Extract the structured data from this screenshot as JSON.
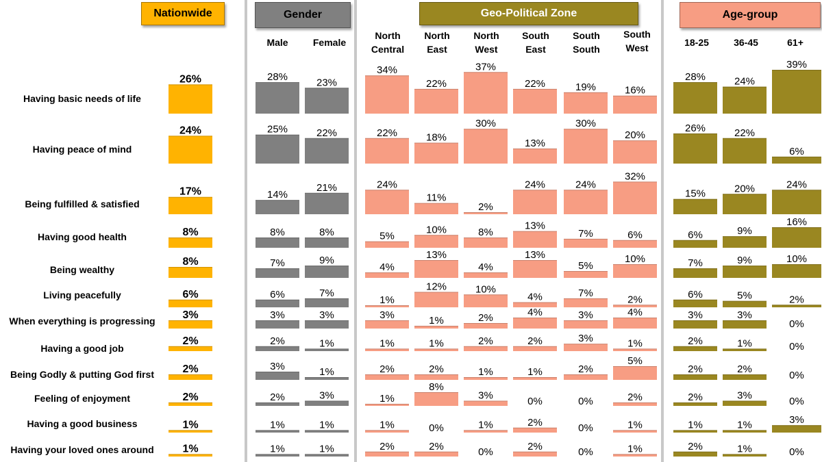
{
  "headers": {
    "nationwide": "Nationwide",
    "gender": "Gender",
    "zone": "Geo-Political Zone",
    "age": "Age-group"
  },
  "columns": {
    "male": "Male",
    "female": "Female",
    "north_central": [
      "North",
      "Central"
    ],
    "north_east": [
      "North",
      "East"
    ],
    "north_west": [
      "North",
      "West"
    ],
    "south_east": [
      "South",
      "East"
    ],
    "south_south": [
      "South",
      "South"
    ],
    "south_west": [
      "South",
      "West"
    ],
    "age_18_25": "18-25",
    "age_36_45": "36-45",
    "age_61": "61+"
  },
  "rows": [
    "Having basic needs of life",
    "Having peace of mind",
    "Being fulfilled & satisfied",
    "Having good health",
    "Being wealthy",
    "Living peacefully",
    "When everything is progressing",
    "Having a good job",
    "Being Godly & putting God first",
    "Feeling of enjoyment",
    "Having a good business",
    "Having your loved ones around"
  ],
  "colors": {
    "nationwide": "#ffb301",
    "gender": "#808080",
    "zone": "#f79d83",
    "age": "#9a8721",
    "divider": "#c8c8c8"
  },
  "chart_data": {
    "type": "bar",
    "unit": "%",
    "categories": [
      "Having basic needs of life",
      "Having peace of mind",
      "Being fulfilled & satisfied",
      "Having good health",
      "Being wealthy",
      "Living peacefully",
      "When everything is progressing",
      "Having a good job",
      "Being Godly & putting God first",
      "Feeling of enjoyment",
      "Having a good business",
      "Having your loved ones around"
    ],
    "series": [
      {
        "name": "Nationwide",
        "group": "nationwide",
        "values": [
          26,
          24,
          17,
          8,
          8,
          6,
          3,
          2,
          2,
          2,
          1,
          1
        ]
      },
      {
        "name": "Male",
        "group": "gender",
        "values": [
          28,
          25,
          14,
          8,
          7,
          6,
          3,
          2,
          3,
          2,
          1,
          1
        ]
      },
      {
        "name": "Female",
        "group": "gender",
        "values": [
          23,
          22,
          21,
          8,
          9,
          7,
          3,
          1,
          1,
          3,
          1,
          1
        ]
      },
      {
        "name": "North Central",
        "group": "zone",
        "values": [
          34,
          22,
          24,
          5,
          4,
          1,
          3,
          1,
          2,
          1,
          1,
          2
        ]
      },
      {
        "name": "North East",
        "group": "zone",
        "values": [
          22,
          18,
          11,
          10,
          13,
          12,
          1,
          1,
          2,
          8,
          0,
          2
        ]
      },
      {
        "name": "North West",
        "group": "zone",
        "values": [
          37,
          30,
          2,
          8,
          4,
          10,
          2,
          2,
          1,
          3,
          1,
          0
        ]
      },
      {
        "name": "South East",
        "group": "zone",
        "values": [
          22,
          13,
          24,
          13,
          13,
          4,
          4,
          2,
          1,
          0,
          2,
          2
        ]
      },
      {
        "name": "South South",
        "group": "zone",
        "values": [
          19,
          30,
          24,
          7,
          5,
          7,
          3,
          3,
          2,
          0,
          0,
          0
        ]
      },
      {
        "name": "South West",
        "group": "zone",
        "values": [
          16,
          20,
          32,
          6,
          10,
          2,
          4,
          1,
          5,
          2,
          1,
          1
        ]
      },
      {
        "name": "18-25",
        "group": "age",
        "values": [
          28,
          26,
          15,
          6,
          7,
          6,
          3,
          2,
          2,
          2,
          1,
          2
        ]
      },
      {
        "name": "36-45",
        "group": "age",
        "values": [
          24,
          22,
          20,
          9,
          9,
          5,
          3,
          1,
          2,
          3,
          1,
          1
        ]
      },
      {
        "name": "61+",
        "group": "age",
        "values": [
          39,
          6,
          24,
          16,
          10,
          2,
          0,
          0,
          0,
          0,
          3,
          0
        ]
      }
    ]
  }
}
